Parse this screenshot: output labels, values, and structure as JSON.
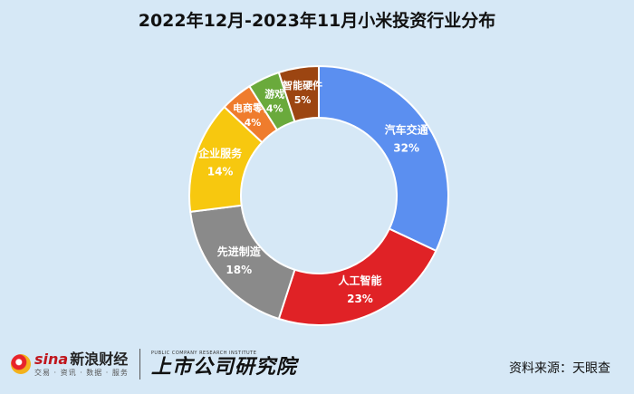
{
  "title": "2022年12月-2023年11月小米投资行业分布",
  "footer": {
    "sina_logo_text": "sina",
    "sina_brand": "新浪财经",
    "sina_tagline": "交易 · 资讯 · 数据 · 服务",
    "scri_en": "PUBLIC COMPANY RESEARCH INSTITUTE",
    "scri_cn": "上市公司研究院",
    "source": "资料来源：天眼查"
  },
  "chart_data": {
    "type": "pie",
    "donut": true,
    "title": "2022年12月-2023年11月小米投资行业分布",
    "categories": [
      "汽车交通",
      "人工智能",
      "先进制造",
      "企业服务",
      "电商零售",
      "游戏",
      "智能硬件"
    ],
    "values": [
      32,
      23,
      18,
      14,
      4,
      4,
      5
    ],
    "value_labels": [
      "32%",
      "23%",
      "18%",
      "14%",
      "4%",
      "4%",
      "5%"
    ],
    "colors": [
      "#5b8ff0",
      "#e02226",
      "#8a8a8a",
      "#f7c80f",
      "#ef7c2d",
      "#6aaa3c",
      "#9c4511"
    ],
    "legend": "none"
  }
}
